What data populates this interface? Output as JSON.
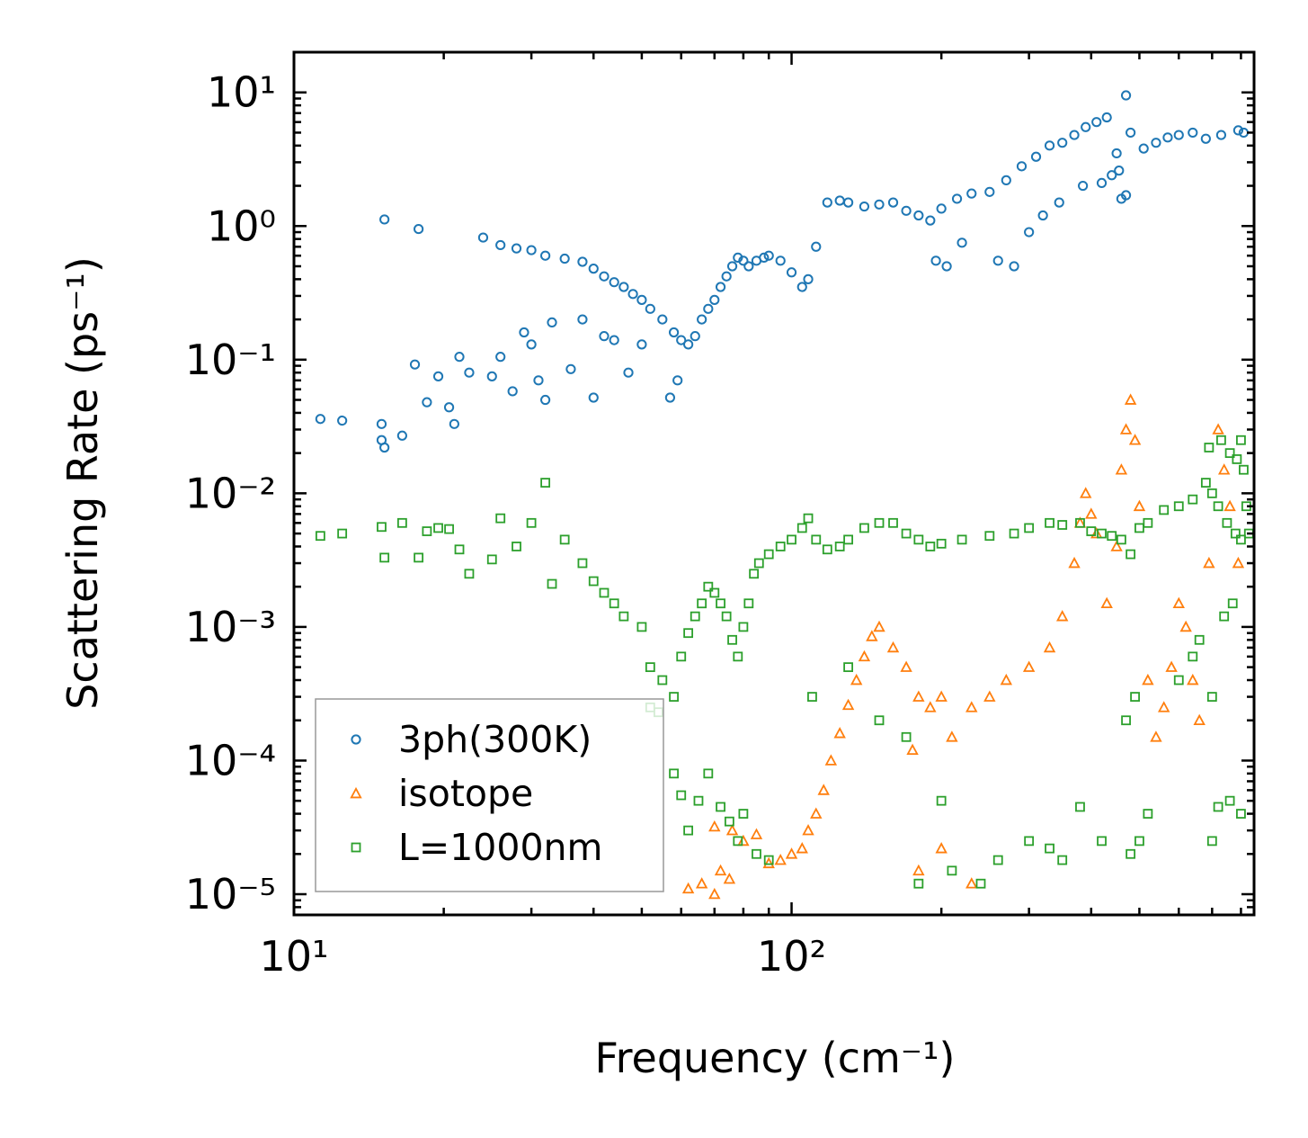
{
  "chart_data": {
    "type": "scatter",
    "xscale": "log",
    "yscale": "log",
    "xlim": [
      10,
      850
    ],
    "ylim": [
      7e-06,
      20
    ],
    "xlabel": "Frequency (cm⁻¹)",
    "ylabel": "Scattering Rate (ps⁻¹)",
    "xticks": [
      {
        "value": 10,
        "label": "10¹"
      },
      {
        "value": 100,
        "label": "10²"
      }
    ],
    "yticks": [
      {
        "value": 10,
        "label": "10¹"
      },
      {
        "value": 1,
        "label": "10⁰"
      },
      {
        "value": 0.1,
        "label": "10⁻¹"
      },
      {
        "value": 0.01,
        "label": "10⁻²"
      },
      {
        "value": 0.001,
        "label": "10⁻³"
      },
      {
        "value": 0.0001,
        "label": "10⁻⁴"
      },
      {
        "value": 1e-05,
        "label": "10⁻⁵"
      }
    ],
    "legend_position": "lower-left",
    "series": [
      {
        "name": "3ph(300K)",
        "marker": "circle",
        "color": "#1f77b4",
        "points": [
          [
            11.3,
            0.036
          ],
          [
            12.5,
            0.035
          ],
          [
            15,
            0.033
          ],
          [
            15,
            0.025
          ],
          [
            15.2,
            0.022
          ],
          [
            16.5,
            0.027
          ],
          [
            15.2,
            1.12
          ],
          [
            17.8,
            0.95
          ],
          [
            17.5,
            0.092
          ],
          [
            18.5,
            0.048
          ],
          [
            19.5,
            0.075
          ],
          [
            20.5,
            0.044
          ],
          [
            21,
            0.033
          ],
          [
            21.5,
            0.105
          ],
          [
            22.5,
            0.08
          ],
          [
            25,
            0.075
          ],
          [
            26,
            0.105
          ],
          [
            27.5,
            0.058
          ],
          [
            29,
            0.16
          ],
          [
            30,
            0.13
          ],
          [
            31,
            0.07
          ],
          [
            32,
            0.05
          ],
          [
            33,
            0.19
          ],
          [
            36,
            0.085
          ],
          [
            38,
            0.2
          ],
          [
            40,
            0.052
          ],
          [
            42,
            0.15
          ],
          [
            44,
            0.14
          ],
          [
            47,
            0.08
          ],
          [
            50,
            0.13
          ],
          [
            57,
            0.052
          ],
          [
            59,
            0.07
          ],
          [
            24,
            0.82
          ],
          [
            26,
            0.72
          ],
          [
            28,
            0.68
          ],
          [
            30,
            0.66
          ],
          [
            32,
            0.6
          ],
          [
            35,
            0.57
          ],
          [
            38,
            0.54
          ],
          [
            40,
            0.48
          ],
          [
            42,
            0.42
          ],
          [
            44,
            0.38
          ],
          [
            46,
            0.35
          ],
          [
            48,
            0.31
          ],
          [
            50,
            0.28
          ],
          [
            52,
            0.24
          ],
          [
            55,
            0.2
          ],
          [
            58,
            0.16
          ],
          [
            60,
            0.14
          ],
          [
            62,
            0.13
          ],
          [
            64,
            0.15
          ],
          [
            66,
            0.2
          ],
          [
            68,
            0.24
          ],
          [
            70,
            0.28
          ],
          [
            72,
            0.35
          ],
          [
            74,
            0.42
          ],
          [
            76,
            0.5
          ],
          [
            78,
            0.58
          ],
          [
            80,
            0.55
          ],
          [
            82,
            0.5
          ],
          [
            85,
            0.55
          ],
          [
            88,
            0.58
          ],
          [
            90,
            0.6
          ],
          [
            95,
            0.55
          ],
          [
            100,
            0.45
          ],
          [
            105,
            0.35
          ],
          [
            108,
            0.4
          ],
          [
            112,
            0.7
          ],
          [
            118,
            1.5
          ],
          [
            125,
            1.55
          ],
          [
            130,
            1.5
          ],
          [
            140,
            1.4
          ],
          [
            150,
            1.45
          ],
          [
            160,
            1.5
          ],
          [
            170,
            1.3
          ],
          [
            180,
            1.2
          ],
          [
            190,
            1.1
          ],
          [
            200,
            1.35
          ],
          [
            215,
            1.6
          ],
          [
            230,
            1.75
          ],
          [
            250,
            1.8
          ],
          [
            270,
            2.2
          ],
          [
            290,
            2.8
          ],
          [
            310,
            3.3
          ],
          [
            330,
            4.0
          ],
          [
            350,
            4.2
          ],
          [
            370,
            4.8
          ],
          [
            390,
            5.5
          ],
          [
            410,
            6.0
          ],
          [
            430,
            6.5
          ],
          [
            450,
            3.5
          ],
          [
            470,
            9.5
          ],
          [
            480,
            5.0
          ],
          [
            510,
            3.8
          ],
          [
            540,
            4.2
          ],
          [
            570,
            4.6
          ],
          [
            600,
            4.8
          ],
          [
            640,
            5.0
          ],
          [
            680,
            4.5
          ],
          [
            730,
            4.8
          ],
          [
            790,
            5.2
          ],
          [
            810,
            5.0
          ],
          [
            195,
            0.55
          ],
          [
            205,
            0.5
          ],
          [
            220,
            0.75
          ],
          [
            260,
            0.55
          ],
          [
            280,
            0.5
          ],
          [
            300,
            0.9
          ],
          [
            320,
            1.2
          ],
          [
            345,
            1.5
          ],
          [
            385,
            2.0
          ],
          [
            420,
            2.1
          ],
          [
            440,
            2.4
          ],
          [
            455,
            2.6
          ],
          [
            460,
            1.6
          ],
          [
            470,
            1.7
          ]
        ]
      },
      {
        "name": "isotope",
        "marker": "triangle",
        "color": "#ff7f0e",
        "points": [
          [
            62,
            1.1e-05
          ],
          [
            66,
            1.2e-05
          ],
          [
            70,
            1e-05
          ],
          [
            72,
            1.5e-05
          ],
          [
            75,
            1.3e-05
          ],
          [
            70,
            3.2e-05
          ],
          [
            76,
            3e-05
          ],
          [
            80,
            2.5e-05
          ],
          [
            85,
            2.8e-05
          ],
          [
            90,
            1.7e-05
          ],
          [
            95,
            1.8e-05
          ],
          [
            100,
            2e-05
          ],
          [
            105,
            2.2e-05
          ],
          [
            108,
            3e-05
          ],
          [
            112,
            4e-05
          ],
          [
            116,
            6e-05
          ],
          [
            120,
            0.0001
          ],
          [
            125,
            0.00016
          ],
          [
            130,
            0.00026
          ],
          [
            135,
            0.0004
          ],
          [
            140,
            0.0006
          ],
          [
            145,
            0.00085
          ],
          [
            150,
            0.001
          ],
          [
            160,
            0.0007
          ],
          [
            170,
            0.0005
          ],
          [
            180,
            0.0003
          ],
          [
            175,
            0.00012
          ],
          [
            190,
            0.00025
          ],
          [
            200,
            0.0003
          ],
          [
            210,
            0.00015
          ],
          [
            230,
            0.00025
          ],
          [
            250,
            0.0003
          ],
          [
            270,
            0.0004
          ],
          [
            300,
            0.0005
          ],
          [
            330,
            0.0007
          ],
          [
            350,
            0.0012
          ],
          [
            370,
            0.003
          ],
          [
            380,
            0.006
          ],
          [
            390,
            0.01
          ],
          [
            400,
            0.007
          ],
          [
            410,
            0.005
          ],
          [
            430,
            0.0015
          ],
          [
            450,
            0.004
          ],
          [
            460,
            0.015
          ],
          [
            470,
            0.03
          ],
          [
            480,
            0.05
          ],
          [
            490,
            0.025
          ],
          [
            500,
            0.008
          ],
          [
            520,
            0.0004
          ],
          [
            540,
            0.00015
          ],
          [
            560,
            0.00025
          ],
          [
            580,
            0.0005
          ],
          [
            600,
            0.0015
          ],
          [
            620,
            0.001
          ],
          [
            640,
            0.0004
          ],
          [
            660,
            0.0002
          ],
          [
            690,
            0.003
          ],
          [
            720,
            0.03
          ],
          [
            740,
            0.015
          ],
          [
            760,
            0.008
          ],
          [
            790,
            0.003
          ],
          [
            200,
            2.2e-05
          ],
          [
            180,
            1.5e-05
          ],
          [
            230,
            1.2e-05
          ]
        ]
      },
      {
        "name": "L=1000nm",
        "marker": "square",
        "color": "#2ca02c",
        "points": [
          [
            11.3,
            0.0048
          ],
          [
            12.5,
            0.005
          ],
          [
            15,
            0.0056
          ],
          [
            15.2,
            0.0033
          ],
          [
            16.5,
            0.006
          ],
          [
            17.8,
            0.0033
          ],
          [
            18.5,
            0.0052
          ],
          [
            19.5,
            0.0055
          ],
          [
            20.5,
            0.0054
          ],
          [
            21.5,
            0.0038
          ],
          [
            22.5,
            0.0025
          ],
          [
            25,
            0.0032
          ],
          [
            26,
            0.0065
          ],
          [
            28,
            0.004
          ],
          [
            30,
            0.006
          ],
          [
            32,
            0.012
          ],
          [
            33,
            0.0021
          ],
          [
            35,
            0.0045
          ],
          [
            38,
            0.003
          ],
          [
            40,
            0.0022
          ],
          [
            42,
            0.0018
          ],
          [
            44,
            0.0015
          ],
          [
            46,
            0.0012
          ],
          [
            50,
            0.001
          ],
          [
            52,
            0.0005
          ],
          [
            55,
            0.0004
          ],
          [
            58,
            0.0003
          ],
          [
            60,
            0.0006
          ],
          [
            62,
            0.0009
          ],
          [
            64,
            0.0012
          ],
          [
            66,
            0.0015
          ],
          [
            68,
            0.002
          ],
          [
            70,
            0.0018
          ],
          [
            72,
            0.0015
          ],
          [
            74,
            0.0012
          ],
          [
            76,
            0.0008
          ],
          [
            78,
            0.0006
          ],
          [
            80,
            0.001
          ],
          [
            82,
            0.0015
          ],
          [
            84,
            0.0025
          ],
          [
            86,
            0.003
          ],
          [
            90,
            0.0035
          ],
          [
            95,
            0.004
          ],
          [
            100,
            0.0045
          ],
          [
            105,
            0.0055
          ],
          [
            108,
            0.0065
          ],
          [
            112,
            0.0045
          ],
          [
            118,
            0.0038
          ],
          [
            125,
            0.004
          ],
          [
            130,
            0.0045
          ],
          [
            140,
            0.0055
          ],
          [
            150,
            0.006
          ],
          [
            160,
            0.006
          ],
          [
            170,
            0.005
          ],
          [
            180,
            0.0045
          ],
          [
            190,
            0.004
          ],
          [
            200,
            0.0042
          ],
          [
            220,
            0.0045
          ],
          [
            250,
            0.0048
          ],
          [
            280,
            0.005
          ],
          [
            300,
            0.0055
          ],
          [
            330,
            0.006
          ],
          [
            350,
            0.0058
          ],
          [
            380,
            0.006
          ],
          [
            400,
            0.0052
          ],
          [
            420,
            0.005
          ],
          [
            440,
            0.0048
          ],
          [
            460,
            0.0045
          ],
          [
            480,
            0.0035
          ],
          [
            500,
            0.0055
          ],
          [
            520,
            0.006
          ],
          [
            560,
            0.0075
          ],
          [
            600,
            0.008
          ],
          [
            640,
            0.009
          ],
          [
            680,
            0.012
          ],
          [
            700,
            0.01
          ],
          [
            720,
            0.008
          ],
          [
            750,
            0.006
          ],
          [
            780,
            0.005
          ],
          [
            800,
            0.0045
          ],
          [
            52,
            0.00025
          ],
          [
            54,
            0.00023
          ],
          [
            58,
            8e-05
          ],
          [
            60,
            5.5e-05
          ],
          [
            62,
            3e-05
          ],
          [
            65,
            5e-05
          ],
          [
            68,
            8e-05
          ],
          [
            72,
            4.5e-05
          ],
          [
            75,
            3.5e-05
          ],
          [
            78,
            2.5e-05
          ],
          [
            80,
            4e-05
          ],
          [
            85,
            2e-05
          ],
          [
            90,
            1.8e-05
          ],
          [
            110,
            0.0003
          ],
          [
            130,
            0.0005
          ],
          [
            150,
            0.0002
          ],
          [
            170,
            0.00015
          ],
          [
            180,
            1.2e-05
          ],
          [
            200,
            5e-05
          ],
          [
            210,
            1.5e-05
          ],
          [
            240,
            1.2e-05
          ],
          [
            260,
            1.8e-05
          ],
          [
            300,
            2.5e-05
          ],
          [
            330,
            2.2e-05
          ],
          [
            350,
            1.8e-05
          ],
          [
            380,
            4.5e-05
          ],
          [
            420,
            2.5e-05
          ],
          [
            480,
            2e-05
          ],
          [
            500,
            2.5e-05
          ],
          [
            520,
            4e-05
          ],
          [
            700,
            2.5e-05
          ],
          [
            720,
            4.5e-05
          ],
          [
            760,
            5e-05
          ],
          [
            800,
            4e-05
          ],
          [
            470,
            0.0002
          ],
          [
            490,
            0.0003
          ],
          [
            600,
            0.0004
          ],
          [
            640,
            0.0006
          ],
          [
            660,
            0.0008
          ],
          [
            700,
            0.0003
          ],
          [
            740,
            0.0012
          ],
          [
            770,
            0.0015
          ],
          [
            690,
            0.022
          ],
          [
            730,
            0.025
          ],
          [
            760,
            0.02
          ],
          [
            785,
            0.018
          ],
          [
            800,
            0.025
          ],
          [
            810,
            0.015
          ],
          [
            820,
            0.008
          ],
          [
            830,
            0.005
          ]
        ]
      }
    ]
  }
}
